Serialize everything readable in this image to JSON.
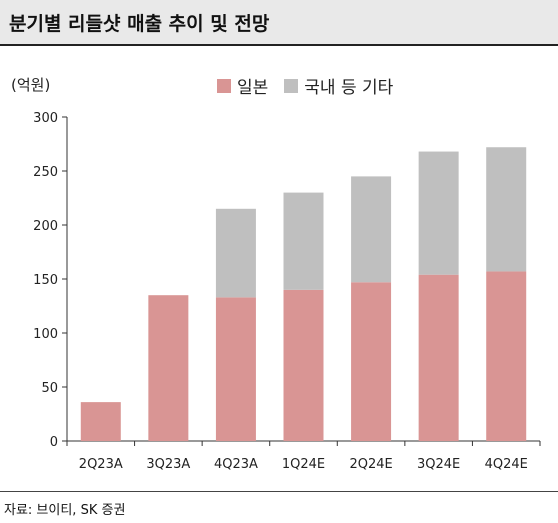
{
  "header": {
    "title": "분기별 리들샷 매출 추이 및 전망"
  },
  "unit_label": "(억원)",
  "source": "자료: 브이티, SK 증권",
  "colors": {
    "japan": "#d99594",
    "domestic_etc": "#bfbfbf",
    "title_bar": "#e9e9e9"
  },
  "chart_data": {
    "type": "bar",
    "stacked": true,
    "title": "분기별 리들샷 매출 추이 및 전망",
    "ylabel": "(억원)",
    "xlabel": "",
    "ylim": [
      0,
      300
    ],
    "yticks": [
      0,
      50,
      100,
      150,
      200,
      250,
      300
    ],
    "categories": [
      "2Q23A",
      "3Q23A",
      "4Q23A",
      "1Q24E",
      "2Q24E",
      "3Q24E",
      "4Q24E"
    ],
    "series": [
      {
        "name": "일본",
        "color": "#d99594",
        "values": [
          36,
          135,
          133,
          140,
          147,
          154,
          157
        ]
      },
      {
        "name": "국내 등 기타",
        "color": "#bfbfbf",
        "values": [
          0,
          0,
          82,
          90,
          98,
          114,
          115
        ]
      }
    ],
    "legend_position": "top-center",
    "grid": false
  }
}
